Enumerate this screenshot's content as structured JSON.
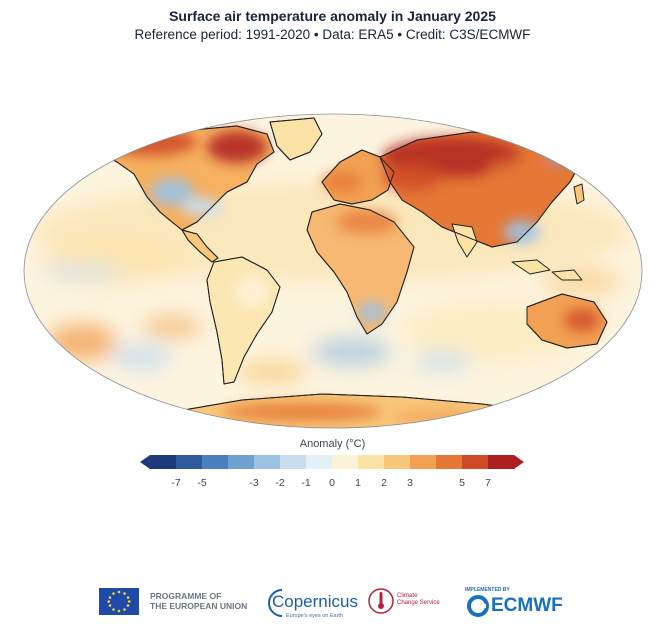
{
  "header": {
    "title": "Surface air temperature anomaly in January 2025",
    "subtitle": "Reference period: 1991-2020 • Data: ERA5 • Credit: C3S/ECMWF"
  },
  "legend": {
    "title": "Anomaly (°C)",
    "ticks": [
      "-7",
      "-5",
      "-3",
      "-2",
      "-1",
      "0",
      "1",
      "2",
      "3",
      "5",
      "7"
    ],
    "colors": [
      "#1f3a7a",
      "#2f5b9e",
      "#4a7fc0",
      "#6fa0d2",
      "#9cc2e3",
      "#c8def0",
      "#e4f0f8",
      "#fbf3d8",
      "#fbe3a6",
      "#f8c77a",
      "#f2a154",
      "#e67836",
      "#cf4a26",
      "#ae1f1f"
    ]
  },
  "map": {
    "name": "world-temperature-anomaly-map",
    "ocean_color": "#fdf4df",
    "outline_color": "#222222"
  },
  "logos": {
    "eu_line1": "PROGRAMME OF",
    "eu_line2": "THE EUROPEAN UNION",
    "copernicus": "Copernicus",
    "copernicus_sub": "Europe's eyes on Earth",
    "c3s_line1": "Climate",
    "c3s_line2": "Change Service",
    "ecmwf_top": "IMPLEMENTED BY",
    "ecmwf": "ECMWF"
  }
}
